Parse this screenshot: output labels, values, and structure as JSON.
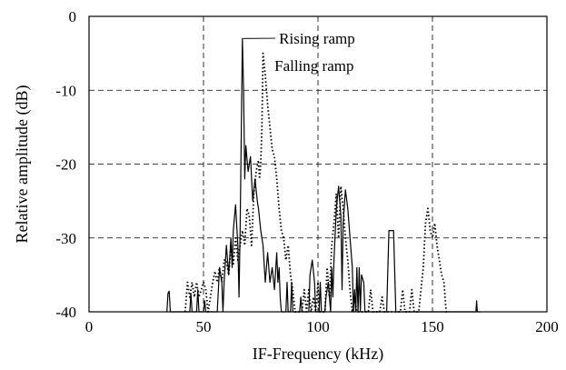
{
  "chart_data": {
    "type": "line",
    "title": "",
    "xlabel": "IF-Frequency  (kHz)",
    "ylabel": "Relative amplitude  (dB)",
    "xlim": [
      0,
      200
    ],
    "ylim": [
      -40,
      0
    ],
    "xticks": [
      0,
      50,
      100,
      150,
      200
    ],
    "yticks": [
      0,
      -10,
      -20,
      -30,
      -40
    ],
    "grid": true,
    "series": [
      {
        "name": "Rising ramp",
        "style": "solid",
        "points": [
          [
            34,
            -40
          ],
          [
            34.5,
            -37.5
          ],
          [
            35,
            -37.2
          ],
          [
            35.5,
            -40
          ],
          [
            44,
            -40
          ],
          [
            44.5,
            -37.5
          ],
          [
            45,
            -40
          ],
          [
            47,
            -40
          ],
          [
            47.5,
            -37
          ],
          [
            48,
            -40
          ],
          [
            50,
            -40
          ],
          [
            50.5,
            -38.5
          ],
          [
            51,
            -40
          ],
          [
            56,
            -40
          ],
          [
            56.5,
            -37
          ],
          [
            57,
            -34
          ],
          [
            58,
            -36
          ],
          [
            58.5,
            -40
          ],
          [
            59,
            -36
          ],
          [
            60,
            -31
          ],
          [
            61,
            -35
          ],
          [
            62,
            -30
          ],
          [
            62.5,
            -34
          ],
          [
            63,
            -29
          ],
          [
            64,
            -25.5
          ],
          [
            65,
            -31
          ],
          [
            65.5,
            -38
          ],
          [
            66,
            -29
          ],
          [
            67,
            -3
          ],
          [
            67.5,
            -10
          ],
          [
            68,
            -22
          ],
          [
            68.5,
            -17.5
          ],
          [
            69.5,
            -21
          ],
          [
            70.5,
            -19
          ],
          [
            71.5,
            -25
          ],
          [
            72.5,
            -22
          ],
          [
            73.5,
            -25
          ],
          [
            74,
            -26
          ],
          [
            75,
            -29
          ],
          [
            76,
            -31
          ],
          [
            77,
            -36
          ],
          [
            78,
            -32
          ],
          [
            79,
            -36
          ],
          [
            80,
            -34
          ],
          [
            81,
            -37
          ],
          [
            82,
            -32
          ],
          [
            82.5,
            -36
          ],
          [
            83,
            -34
          ],
          [
            83.5,
            -38
          ],
          [
            84,
            -40
          ],
          [
            86,
            -40
          ],
          [
            86.5,
            -36
          ],
          [
            87,
            -40
          ],
          [
            88,
            -40
          ],
          [
            88.5,
            -36
          ],
          [
            89,
            -40
          ],
          [
            92,
            -40
          ],
          [
            92.5,
            -38
          ],
          [
            93,
            -40
          ],
          [
            96,
            -40
          ],
          [
            96.5,
            -35
          ],
          [
            97.5,
            -33
          ],
          [
            98.5,
            -36
          ],
          [
            99,
            -40
          ],
          [
            100.5,
            -40
          ],
          [
            101,
            -36
          ],
          [
            101.5,
            -40
          ],
          [
            103,
            -40
          ],
          [
            103.5,
            -38
          ],
          [
            104.5,
            -36
          ],
          [
            105.5,
            -40
          ],
          [
            106,
            -34
          ],
          [
            106.5,
            -38
          ],
          [
            107,
            -33
          ],
          [
            108,
            -26
          ],
          [
            109,
            -23
          ],
          [
            110,
            -27
          ],
          [
            110.5,
            -37
          ],
          [
            111,
            -28
          ],
          [
            112,
            -23.5
          ],
          [
            113,
            -26
          ],
          [
            114,
            -30
          ],
          [
            115,
            -34
          ],
          [
            115.5,
            -40
          ],
          [
            116,
            -37
          ],
          [
            116.5,
            -40
          ],
          [
            117,
            -34
          ],
          [
            117.5,
            -40
          ],
          [
            118,
            -34
          ],
          [
            118.5,
            -40
          ],
          [
            119,
            -35
          ],
          [
            120,
            -36
          ],
          [
            120.5,
            -40
          ],
          [
            130,
            -40
          ],
          [
            131,
            -29
          ],
          [
            133,
            -29
          ],
          [
            134,
            -40
          ],
          [
            134.5,
            -40
          ],
          [
            169,
            -40
          ],
          [
            169.3,
            -38.5
          ],
          [
            169.6,
            -40
          ],
          [
            171,
            -40
          ]
        ]
      },
      {
        "name": "Falling ramp",
        "style": "dotted",
        "points": [
          [
            42,
            -40
          ],
          [
            43,
            -36
          ],
          [
            44,
            -38
          ],
          [
            45,
            -36
          ],
          [
            46,
            -38
          ],
          [
            47,
            -36
          ],
          [
            48,
            -38
          ],
          [
            50,
            -36
          ],
          [
            51,
            -37
          ],
          [
            52,
            -40
          ],
          [
            53,
            -38
          ],
          [
            54,
            -36
          ],
          [
            55,
            -34.5
          ],
          [
            56,
            -36
          ],
          [
            57,
            -34
          ],
          [
            58,
            -36
          ],
          [
            59,
            -33
          ],
          [
            60,
            -33
          ],
          [
            61,
            -35
          ],
          [
            62,
            -31
          ],
          [
            63,
            -33.5
          ],
          [
            64,
            -30
          ],
          [
            65,
            -33
          ],
          [
            66,
            -31
          ],
          [
            67,
            -29
          ],
          [
            68,
            -31
          ],
          [
            69,
            -26
          ],
          [
            70,
            -27
          ],
          [
            71,
            -31
          ],
          [
            72,
            -24
          ],
          [
            73,
            -21
          ],
          [
            74,
            -19.5
          ],
          [
            74.5,
            -22
          ],
          [
            75,
            -20
          ],
          [
            75.5,
            -15
          ],
          [
            76,
            -5
          ],
          [
            77,
            -8
          ],
          [
            78,
            -12
          ],
          [
            79,
            -15
          ],
          [
            80,
            -18
          ],
          [
            81,
            -19
          ],
          [
            82,
            -22
          ],
          [
            83,
            -26
          ],
          [
            84,
            -29
          ],
          [
            85,
            -30
          ],
          [
            86,
            -33
          ],
          [
            87,
            -31
          ],
          [
            88,
            -35
          ],
          [
            89,
            -37
          ],
          [
            90,
            -40
          ],
          [
            93,
            -40
          ],
          [
            94,
            -37
          ],
          [
            95,
            -40
          ],
          [
            96,
            -37
          ],
          [
            97,
            -40
          ],
          [
            98,
            -38
          ],
          [
            99,
            -40
          ],
          [
            100,
            -36
          ],
          [
            100.5,
            -40
          ],
          [
            103,
            -40
          ],
          [
            104,
            -34
          ],
          [
            105,
            -38
          ],
          [
            106,
            -31
          ],
          [
            107,
            -28
          ],
          [
            108,
            -24
          ],
          [
            109,
            -30
          ],
          [
            110,
            -23
          ],
          [
            111,
            -26
          ],
          [
            112,
            -30
          ],
          [
            113,
            -33
          ],
          [
            114,
            -37
          ],
          [
            115,
            -40
          ],
          [
            116,
            -38
          ],
          [
            117,
            -40
          ],
          [
            120,
            -40
          ],
          [
            122,
            -40
          ],
          [
            123,
            -37
          ],
          [
            124,
            -40
          ],
          [
            127,
            -40
          ],
          [
            128,
            -38
          ],
          [
            129,
            -40
          ],
          [
            136,
            -40
          ],
          [
            137,
            -37
          ],
          [
            138,
            -40
          ],
          [
            140,
            -40
          ],
          [
            141,
            -37
          ],
          [
            142,
            -40
          ],
          [
            144,
            -40
          ],
          [
            145,
            -37
          ],
          [
            146,
            -34
          ],
          [
            147,
            -28
          ],
          [
            148,
            -26
          ],
          [
            149,
            -29
          ],
          [
            150,
            -30
          ],
          [
            151,
            -28
          ],
          [
            152,
            -31
          ],
          [
            153,
            -33
          ],
          [
            154,
            -35
          ],
          [
            155,
            -36
          ],
          [
            156,
            -40
          ],
          [
            157,
            -40
          ]
        ]
      }
    ],
    "annotations": [
      {
        "text": "Rising ramp",
        "target": [
          67,
          -3
        ],
        "label_at": [
          83,
          -3.7
        ]
      },
      {
        "text": "Falling ramp",
        "target": [
          76,
          -5
        ],
        "label_at": [
          81,
          -7.4
        ]
      }
    ]
  }
}
